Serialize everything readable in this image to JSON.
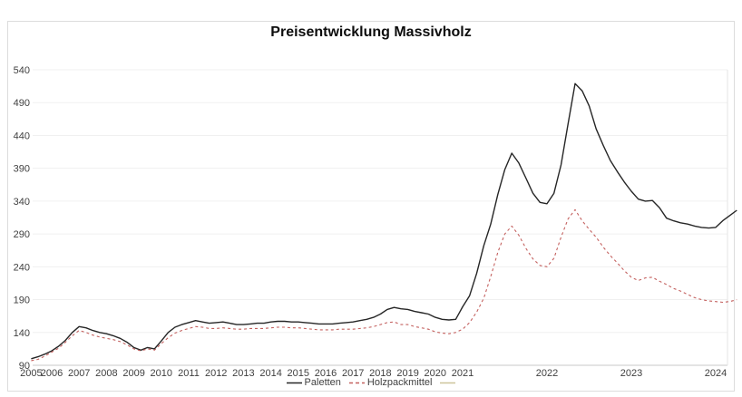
{
  "figure": {
    "title": "Preisentwicklung Massivholz"
  },
  "legend": {
    "items": [
      {
        "label": "Paletten",
        "color": "#262626",
        "style": "solid"
      },
      {
        "label": "Holzpackmittel",
        "color": "#c4615f",
        "style": "dashed"
      },
      {
        "label": "",
        "color": "#cdc49a",
        "style": "solid"
      }
    ]
  },
  "chart_data": {
    "type": "line",
    "title": "Preisentwicklung Massivholz",
    "xlabel": "",
    "ylabel": "",
    "ylim": [
      90,
      540
    ],
    "yticks": [
      90,
      140,
      190,
      240,
      290,
      340,
      390,
      440,
      490,
      540
    ],
    "xticks": [
      2005,
      2006,
      2007,
      2008,
      2009,
      2010,
      2011,
      2012,
      2013,
      2014,
      2015,
      2016,
      2017,
      2018,
      2019,
      2020,
      2021,
      2022,
      2023,
      2024
    ],
    "grid": "horizontal",
    "legend_position": "bottom-center",
    "x_note": "decimal years; quarterly 2005Q2-2020Q4, monthly 2021-01 to 2024-04",
    "x": [
      2005.25,
      2005.5,
      2005.75,
      2006,
      2006.25,
      2006.5,
      2006.75,
      2007,
      2007.25,
      2007.5,
      2007.75,
      2008,
      2008.25,
      2008.5,
      2008.75,
      2009,
      2009.25,
      2009.5,
      2009.75,
      2010,
      2010.25,
      2010.5,
      2010.75,
      2011,
      2011.25,
      2011.5,
      2011.75,
      2012,
      2012.25,
      2012.5,
      2012.75,
      2013,
      2013.25,
      2013.5,
      2013.75,
      2014,
      2014.25,
      2014.5,
      2014.75,
      2015,
      2015.25,
      2015.5,
      2015.75,
      2016,
      2016.25,
      2016.5,
      2016.75,
      2017,
      2017.25,
      2017.5,
      2017.75,
      2018,
      2018.25,
      2018.5,
      2018.75,
      2019,
      2019.25,
      2019.5,
      2019.75,
      2020,
      2020.25,
      2020.5,
      2020.75,
      2021,
      2021.083,
      2021.167,
      2021.25,
      2021.333,
      2021.417,
      2021.5,
      2021.583,
      2021.667,
      2021.75,
      2021.833,
      2021.917,
      2022,
      2022.083,
      2022.167,
      2022.25,
      2022.333,
      2022.417,
      2022.5,
      2022.583,
      2022.667,
      2022.75,
      2022.833,
      2022.917,
      2023,
      2023.083,
      2023.167,
      2023.25,
      2023.333,
      2023.417,
      2023.5,
      2023.583,
      2023.667,
      2023.75,
      2023.833,
      2023.917,
      2024,
      2024.083,
      2024.167,
      2024.25
    ],
    "series": [
      {
        "name": "Paletten",
        "color": "#262626",
        "style": "solid",
        "values": [
          100,
          103,
          107,
          112,
          119,
          128,
          140,
          149,
          147,
          143,
          140,
          138,
          135,
          131,
          125,
          117,
          113,
          117,
          115,
          127,
          140,
          148,
          152,
          155,
          158,
          156,
          154,
          155,
          156,
          154,
          152,
          152,
          153,
          154,
          154,
          156,
          157,
          157,
          156,
          156,
          155,
          154,
          153,
          153,
          153,
          154,
          155,
          156,
          158,
          160,
          163,
          168,
          175,
          178,
          176,
          175,
          172,
          170,
          168,
          163,
          160,
          159,
          160,
          179,
          196,
          230,
          272,
          305,
          350,
          388,
          413,
          398,
          375,
          352,
          338,
          336,
          352,
          395,
          458,
          519,
          508,
          485,
          450,
          425,
          402,
          385,
          369,
          355,
          343,
          340,
          341,
          330,
          314,
          310,
          307,
          305,
          302,
          300,
          299,
          300,
          310,
          318,
          326
        ]
      },
      {
        "name": "Holzpackmittel",
        "color": "#c4615f",
        "style": "dashed",
        "values": [
          97,
          99,
          104,
          110,
          116,
          125,
          135,
          143,
          140,
          136,
          133,
          131,
          129,
          126,
          121,
          115,
          112,
          115,
          113,
          123,
          132,
          139,
          143,
          146,
          149,
          148,
          146,
          146,
          147,
          146,
          145,
          145,
          146,
          146,
          146,
          147,
          148,
          148,
          147,
          147,
          146,
          145,
          144,
          144,
          144,
          145,
          145,
          145,
          146,
          147,
          149,
          152,
          155,
          156,
          152,
          152,
          149,
          147,
          145,
          141,
          139,
          138,
          140,
          145,
          155,
          171,
          192,
          225,
          262,
          290,
          302,
          288,
          268,
          252,
          242,
          240,
          253,
          285,
          313,
          327,
          310,
          297,
          285,
          270,
          257,
          246,
          234,
          224,
          219,
          223,
          224,
          218,
          213,
          207,
          203,
          198,
          193,
          190,
          188,
          187,
          186,
          187,
          190
        ]
      },
      {
        "name": "",
        "color": "#cdc49a",
        "style": "solid",
        "values": []
      }
    ]
  }
}
